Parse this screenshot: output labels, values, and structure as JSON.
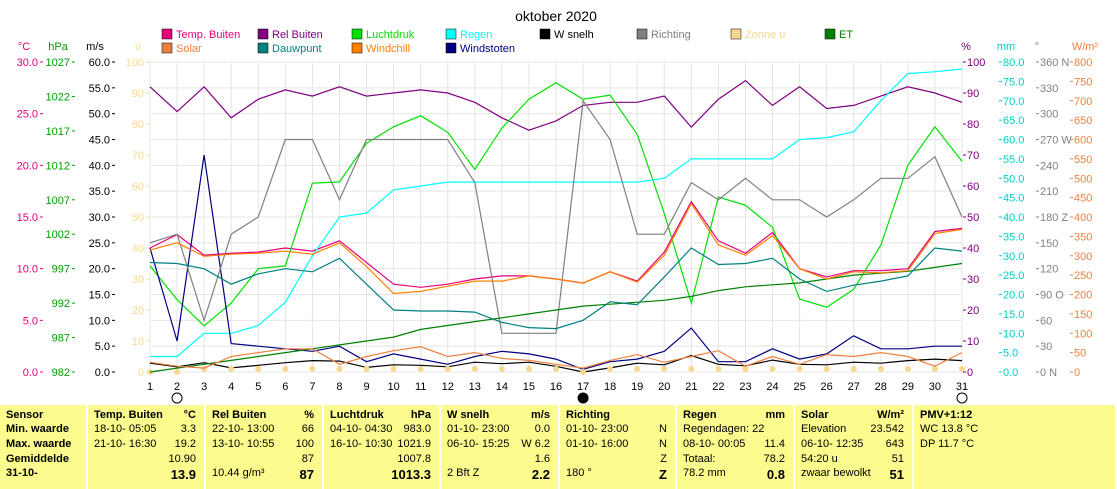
{
  "title": "oktober 2020",
  "legend": [
    {
      "label": "Temp. Buiten",
      "color": "#e8007a"
    },
    {
      "label": "Rel Buiten",
      "color": "#800080"
    },
    {
      "label": "Luchtdruk",
      "color": "#00e000"
    },
    {
      "label": "Regen",
      "color": "#00ffff"
    },
    {
      "label": "W snelh",
      "color": "#000000"
    },
    {
      "label": "Richting",
      "color": "#808080"
    },
    {
      "label": "Zonne u",
      "color": "#f8d890"
    },
    {
      "label": "ET",
      "color": "#008000"
    },
    {
      "label": "Solar",
      "color": "#f08040"
    },
    {
      "label": "Dauwpunt",
      "color": "#008080"
    },
    {
      "label": "Windchill",
      "color": "#ff8000"
    },
    {
      "label": "Windstoten",
      "color": "#000080"
    }
  ],
  "axes": {
    "celsius": {
      "unit": "°C",
      "ticks": [
        "30.0",
        "25.0",
        "20.0",
        "15.0",
        "10.0",
        "5.0",
        "0.0"
      ],
      "color": "#e8007a"
    },
    "hpa": {
      "unit": "hPa",
      "ticks": [
        "1027",
        "1022",
        "1017",
        "1012",
        "1007",
        "1002",
        "997",
        "992",
        "987",
        "982"
      ],
      "color": "#00a000"
    },
    "ms": {
      "unit": "m/s",
      "ticks": [
        "60.0",
        "55.0",
        "50.0",
        "45.0",
        "40.0",
        "35.0",
        "30.0",
        "25.0",
        "20.0",
        "15.0",
        "10.0",
        "5.0",
        "0.0"
      ],
      "color": "#000000"
    },
    "u": {
      "unit": "u",
      "ticks": [
        "100",
        "90",
        "80",
        "70",
        "60",
        "50",
        "40",
        "30",
        "20",
        "10",
        "0"
      ],
      "color": "#f8d890"
    },
    "pct": {
      "unit": "%",
      "ticks": [
        "100",
        "90",
        "80",
        "70",
        "60",
        "50",
        "40",
        "30",
        "20",
        "10",
        "0"
      ],
      "color": "#800080"
    },
    "mm": {
      "unit": "mm",
      "ticks": [
        "80.0",
        "75.0",
        "70.0",
        "65.0",
        "60.0",
        "55.0",
        "50.0",
        "45.0",
        "40.0",
        "35.0",
        "30.0",
        "25.0",
        "20.0",
        "15.0",
        "10.0",
        "5.0",
        "0.0"
      ],
      "color": "#00cccc"
    },
    "deg": {
      "unit": "°",
      "ticks": [
        "360 N",
        "330",
        "300",
        "270 W",
        "240",
        "210",
        "180 Z",
        "150",
        "120",
        "90 O",
        "60",
        "30",
        "0 N"
      ],
      "color": "#808080"
    },
    "wm2": {
      "unit": "W/m²",
      "ticks": [
        "800",
        "750",
        "700",
        "650",
        "600",
        "550",
        "500",
        "450",
        "400",
        "350",
        "300",
        "250",
        "200",
        "150",
        "100",
        "50",
        "0"
      ],
      "color": "#f08040"
    }
  },
  "chart_data": {
    "type": "line",
    "title": "oktober 2020",
    "x": [
      1,
      2,
      3,
      4,
      5,
      6,
      7,
      8,
      9,
      10,
      11,
      12,
      13,
      14,
      15,
      16,
      17,
      18,
      19,
      20,
      21,
      22,
      23,
      24,
      25,
      26,
      27,
      28,
      29,
      30,
      31
    ],
    "x_ticks": [
      "1",
      "2",
      "3",
      "4",
      "5",
      "6",
      "7",
      "8",
      "9",
      "10",
      "11",
      "12",
      "13",
      "14",
      "15",
      "16",
      "17",
      "18",
      "19",
      "20",
      "21",
      "22",
      "23",
      "24",
      "25",
      "26",
      "27",
      "28",
      "29",
      "30",
      "31"
    ],
    "series": [
      {
        "name": "Temp. Buiten",
        "axis": "celsius",
        "color": "#e8007a",
        "values": [
          12.0,
          13.3,
          11.3,
          11.5,
          11.6,
          12.0,
          11.7,
          12.7,
          10.6,
          8.5,
          8.2,
          8.5,
          9.0,
          9.3,
          9.3,
          9.0,
          8.6,
          9.7,
          8.8,
          11.6,
          16.5,
          12.7,
          11.5,
          13.5,
          10.0,
          9.2,
          9.8,
          9.8,
          10.0,
          13.6,
          13.9
        ]
      },
      {
        "name": "Rel Buiten",
        "axis": "pct",
        "color": "#800080",
        "values": [
          92,
          84,
          92,
          82,
          88,
          91,
          89,
          92,
          89,
          90,
          91,
          90,
          87,
          82,
          78,
          81,
          86,
          87,
          87,
          89,
          79,
          88,
          94,
          86,
          92,
          85,
          86,
          89,
          92,
          90,
          87
        ]
      },
      {
        "name": "Luchtdruk",
        "axis": "hpa",
        "color": "#00e000",
        "values": [
          997.4,
          992.5,
          988.7,
          992.0,
          997.0,
          997.4,
          1009.4,
          1009.6,
          1015.2,
          1017.6,
          1019.2,
          1016.8,
          1011.4,
          1017.4,
          1021.6,
          1024.0,
          1021.6,
          1022.2,
          1016.5,
          1005.0,
          992.0,
          1007.4,
          1006.2,
          1003.0,
          992.6,
          991.4,
          994.0,
          1000.4,
          1012.0,
          1017.6,
          1012.6
        ]
      },
      {
        "name": "Regen",
        "axis": "mm",
        "color": "#00ffff",
        "values": [
          4.0,
          4.0,
          10.0,
          10.0,
          12.0,
          18.0,
          30.0,
          40.0,
          41.0,
          47.0,
          48.0,
          49.0,
          49.0,
          49.0,
          49.0,
          49.0,
          49.0,
          49.0,
          49.0,
          50.0,
          55.0,
          55.0,
          55.0,
          55.0,
          60.0,
          60.5,
          62.0,
          70.0,
          77.0,
          77.5,
          78.2
        ]
      },
      {
        "name": "W snelh",
        "axis": "ms",
        "color": "#000000",
        "values": [
          1.7,
          1.0,
          1.8,
          0.8,
          1.3,
          1.8,
          2.2,
          2.1,
          0.9,
          1.4,
          1.3,
          1.0,
          1.9,
          1.6,
          1.9,
          1.1,
          0.0,
          0.8,
          1.7,
          1.4,
          3.2,
          1.5,
          1.2,
          2.3,
          1.5,
          1.4,
          1.9,
          1.7,
          2.2,
          2.5,
          2.2
        ]
      },
      {
        "name": "Windstoten",
        "axis": "ms",
        "color": "#000080",
        "values": [
          24.0,
          6.0,
          42.0,
          5.5,
          5.0,
          4.5,
          4.0,
          5.0,
          2.0,
          3.5,
          2.5,
          1.5,
          3.0,
          4.0,
          3.5,
          2.5,
          0.5,
          2.0,
          2.5,
          4.0,
          8.5,
          2.0,
          2.0,
          4.5,
          2.5,
          3.5,
          7.0,
          4.5,
          4.5,
          5.0,
          5.0
        ]
      },
      {
        "name": "Richting",
        "axis": "deg",
        "color": "#808080",
        "values": [
          150,
          160,
          60,
          160,
          180,
          270,
          270,
          200,
          270,
          270,
          270,
          270,
          220,
          45,
          45,
          45,
          315,
          270,
          160,
          160,
          220,
          200,
          225,
          200,
          200,
          180,
          200,
          225,
          225,
          250,
          180
        ]
      },
      {
        "name": "Zonne u",
        "axis": "u",
        "color": "#f8d890",
        "values": [
          0,
          0,
          1,
          1,
          1,
          1,
          1,
          1,
          1,
          1,
          1,
          1,
          1,
          1,
          1,
          1,
          0,
          1,
          1,
          1,
          1,
          1,
          1,
          1,
          1,
          1,
          1,
          1,
          1,
          1,
          1
        ]
      },
      {
        "name": "ET",
        "axis": "mm",
        "color": "#008000",
        "values": [
          0.0,
          1.0,
          2.0,
          3.0,
          4.0,
          5.0,
          6.0,
          7.0,
          8.0,
          9.0,
          11.0,
          12.0,
          13.0,
          14.0,
          15.0,
          16.0,
          17.0,
          17.5,
          18.0,
          18.5,
          19.5,
          21.0,
          22.0,
          22.5,
          23.0,
          24.0,
          25.0,
          25.5,
          26.0,
          27.0,
          28.0
        ]
      },
      {
        "name": "Solar",
        "axis": "wm2",
        "color": "#f08040",
        "values": [
          25,
          15,
          10,
          40,
          50,
          60,
          60,
          20,
          40,
          55,
          65,
          40,
          50,
          35,
          30,
          20,
          10,
          30,
          45,
          25,
          40,
          55,
          15,
          40,
          20,
          45,
          40,
          50,
          40,
          15,
          50
        ]
      },
      {
        "name": "Dauwpunt",
        "axis": "celsius",
        "color": "#008080",
        "values": [
          10.6,
          10.5,
          10.0,
          8.5,
          9.5,
          10.0,
          9.7,
          11.0,
          8.5,
          6.0,
          5.9,
          5.9,
          5.8,
          4.8,
          4.3,
          4.2,
          5.0,
          6.8,
          6.5,
          9.2,
          12.0,
          10.4,
          10.5,
          11.0,
          9.0,
          7.8,
          8.4,
          8.8,
          9.3,
          12.0,
          11.7
        ]
      },
      {
        "name": "Windchill",
        "axis": "celsius",
        "color": "#ff8000",
        "values": [
          11.8,
          12.5,
          11.2,
          11.4,
          11.5,
          11.7,
          11.4,
          12.5,
          10.2,
          7.6,
          7.8,
          8.3,
          8.8,
          8.8,
          9.3,
          9.0,
          8.6,
          9.7,
          8.7,
          11.3,
          16.3,
          12.3,
          11.3,
          13.2,
          10.0,
          9.0,
          9.7,
          9.6,
          9.8,
          13.4,
          13.8
        ]
      }
    ],
    "moon_markers": [
      {
        "day": 2,
        "phase": "full"
      },
      {
        "day": 17,
        "phase": "new"
      },
      {
        "day": 31,
        "phase": "full"
      }
    ]
  },
  "table": {
    "columns": [
      {
        "key": "sensor",
        "header": "Sensor",
        "unit": "",
        "rows": [
          "Min. waarde",
          "Max. waarde",
          "Gemiddelde",
          "31-10-"
        ]
      },
      {
        "key": "temp",
        "header": "Temp. Buiten",
        "unit": "°C",
        "rows": [
          [
            "18-10- 05:05",
            "3.3"
          ],
          [
            "21-10- 16:30",
            "19.2"
          ],
          [
            "",
            "10.90"
          ],
          [
            "",
            "13.9"
          ]
        ]
      },
      {
        "key": "rel",
        "header": "Rel Buiten",
        "unit": "%",
        "rows": [
          [
            "22-10- 13:00",
            "66"
          ],
          [
            "13-10- 10:55",
            "100"
          ],
          [
            "",
            "87"
          ],
          [
            "10.44 g/m³",
            "87"
          ]
        ]
      },
      {
        "key": "baro",
        "header": "Luchtdruk",
        "unit": "hPa",
        "rows": [
          [
            "04-10- 04:30",
            "983.0"
          ],
          [
            "16-10- 10:30",
            "1021.9"
          ],
          [
            "",
            "1007.8"
          ],
          [
            "",
            "1013.3"
          ]
        ]
      },
      {
        "key": "wind",
        "header": "W snelh",
        "unit": "m/s",
        "rows": [
          [
            "01-10- 23:00",
            "0.0"
          ],
          [
            "06-10- 15:25",
            "W 6.2"
          ],
          [
            "",
            "1.6"
          ],
          [
            "2 Bft Z",
            "2.2"
          ]
        ]
      },
      {
        "key": "dir",
        "header": "Richting",
        "unit": "",
        "rows": [
          [
            "01-10- 23:00",
            "N"
          ],
          [
            "01-10- 16:00",
            "N"
          ],
          [
            "",
            "Z"
          ],
          [
            "180 °",
            "Z"
          ]
        ]
      },
      {
        "key": "rain",
        "header": "Regen",
        "unit": "mm",
        "rows": [
          [
            "Regendagen: 22",
            ""
          ],
          [
            "08-10- 00:05",
            "11.4"
          ],
          [
            "Totaal:",
            "78.2"
          ],
          [
            "78.2 mm",
            "0.8"
          ]
        ]
      },
      {
        "key": "solar",
        "header": "Solar",
        "unit": "W/m²",
        "rows": [
          [
            "Elevation",
            "23.542"
          ],
          [
            "06-10- 12:35",
            "643"
          ],
          [
            "54:20 u",
            "51"
          ],
          [
            "zwaar bewolkt",
            "51"
          ]
        ]
      },
      {
        "key": "pmv",
        "header": "PMV+1:12",
        "unit": "",
        "rows": [
          [
            "WC 13.8 °C",
            ""
          ],
          [
            "DP 11.7 °C",
            ""
          ],
          [
            "",
            ""
          ],
          [
            "",
            ""
          ]
        ]
      }
    ]
  }
}
